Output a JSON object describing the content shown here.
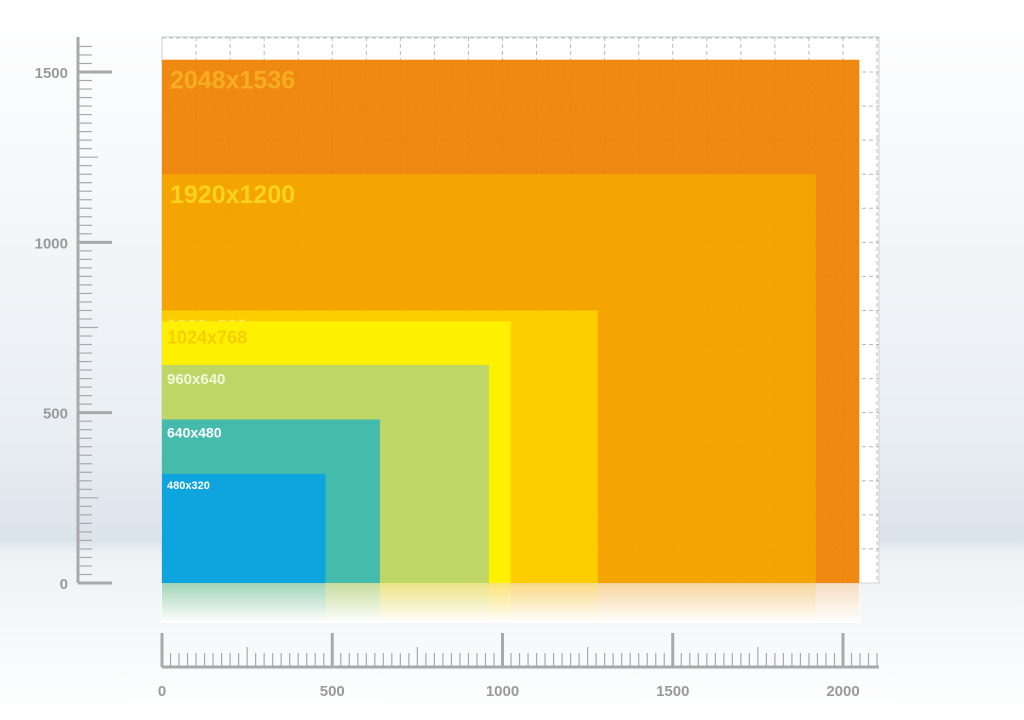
{
  "chart_data": {
    "type": "area",
    "title": "",
    "xlabel": "",
    "ylabel": "",
    "xlim": [
      0,
      2100
    ],
    "ylim": [
      0,
      1600
    ],
    "x_ticks": [
      "0",
      "500",
      "1000",
      "1500",
      "2000"
    ],
    "y_ticks": [
      "0",
      "500",
      "1000",
      "1500"
    ],
    "grid": true,
    "resolutions": [
      {
        "label": "2048x1536",
        "width": 2048,
        "height": 1536,
        "color": "#ee8000",
        "text_color": "#f6ad1f"
      },
      {
        "label": "1920x1200",
        "width": 1920,
        "height": 1200,
        "color": "#f4a700",
        "text_color": "#fbd21c"
      },
      {
        "label": "1280x800",
        "width": 1280,
        "height": 800,
        "color": "#fdd000",
        "text_color": "#fde55a"
      },
      {
        "label": "1024x768",
        "width": 1024,
        "height": 768,
        "color": "#fff200",
        "text_color": "#f7cd00"
      },
      {
        "label": "960x640",
        "width": 960,
        "height": 640,
        "color": "#b9d46d",
        "text_color": "#f4f7dc"
      },
      {
        "label": "640x480",
        "width": 640,
        "height": 480,
        "color": "#3bb9b2",
        "text_color": "#ffffff"
      },
      {
        "label": "480x320",
        "width": 480,
        "height": 320,
        "color": "#0aa3e2",
        "text_color": "#ffffff"
      }
    ]
  }
}
